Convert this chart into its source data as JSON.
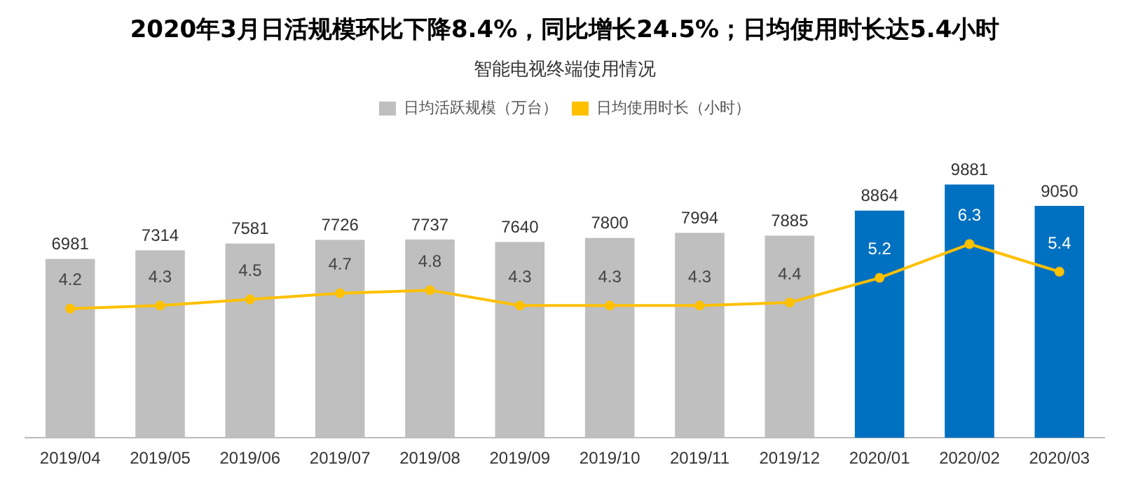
{
  "chart_data": {
    "type": "bar",
    "title": "2020年3月日活规模环比下降8.4%，同比增长24.5%；日均使用时长达5.4小时",
    "subtitle": "智能电视终端使用情况",
    "categories": [
      "2019/04",
      "2019/05",
      "2019/06",
      "2019/07",
      "2019/08",
      "2019/09",
      "2019/10",
      "2019/11",
      "2019/12",
      "2020/01",
      "2020/02",
      "2020/03"
    ],
    "series": [
      {
        "name": "日均活跃规模（万台）",
        "color": "#bfbfbf",
        "colors": [
          "#bfbfbf",
          "#bfbfbf",
          "#bfbfbf",
          "#bfbfbf",
          "#bfbfbf",
          "#bfbfbf",
          "#bfbfbf",
          "#bfbfbf",
          "#bfbfbf",
          "#0070c0",
          "#0070c0",
          "#0070c0"
        ],
        "values": [
          6981,
          7314,
          7581,
          7726,
          7737,
          7640,
          7800,
          7994,
          7885,
          8864,
          9881,
          9050
        ]
      },
      {
        "name": "日均使用时长（小时）",
        "type": "line",
        "axis": "y2",
        "color": "#ffc000",
        "values": [
          4.2,
          4.3,
          4.5,
          4.7,
          4.8,
          4.3,
          4.3,
          4.3,
          4.4,
          5.2,
          6.3,
          5.4
        ]
      }
    ],
    "data_labels": true,
    "legend": "top",
    "grid": false,
    "marker": "circle",
    "line_style": "solid",
    "tick_labels": "x"
  }
}
